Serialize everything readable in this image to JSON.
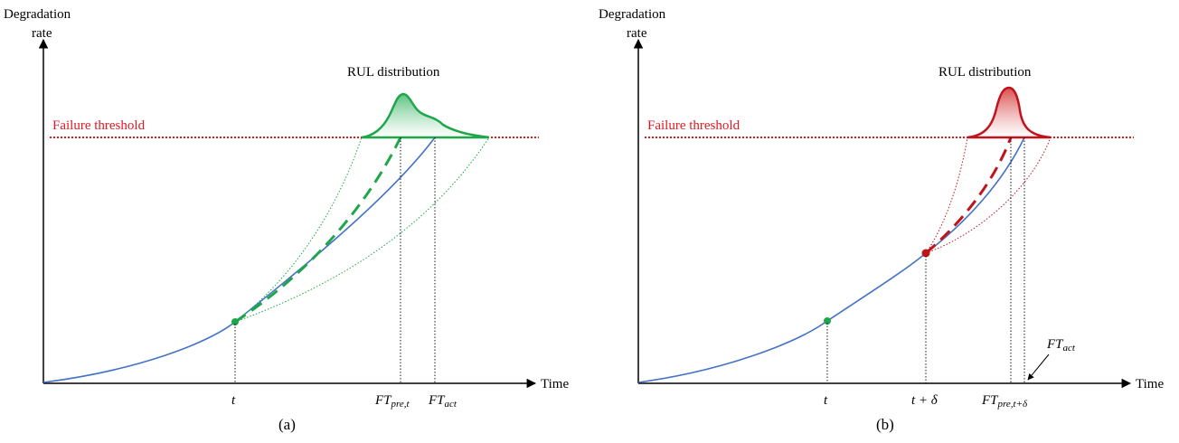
{
  "panels": [
    {
      "id": "a",
      "ylabel_line1": "Degradation",
      "ylabel_line2": "rate",
      "xlabel": "Time",
      "threshold_label": "Failure threshold",
      "dist_label": "RUL distribution",
      "tick_t": "t",
      "tick_pre_main": "FT",
      "tick_pre_sub": "pre,t",
      "tick_act_main": "FT",
      "tick_act_sub": "act",
      "caption": "(a)",
      "accent": "#1fa64a"
    },
    {
      "id": "b",
      "ylabel_line1": "Degradation",
      "ylabel_line2": "rate",
      "xlabel": "Time",
      "threshold_label": "Failure threshold",
      "dist_label": "RUL distribution",
      "tick_t": "t",
      "tick_td": "t + δ",
      "tick_pre_main": "FT",
      "tick_pre_sub": "pre,t+δ",
      "tick_act_main": "FT",
      "tick_act_sub": "act",
      "caption": "(b)",
      "accent": "#c0141c"
    }
  ],
  "colors": {
    "curve": "#4472c4",
    "threshold": "#e3171f",
    "green": "#1fa64a",
    "green_fill": "#a8d8a8",
    "red": "#c0141c",
    "red_fill": "#f2a8a8"
  }
}
